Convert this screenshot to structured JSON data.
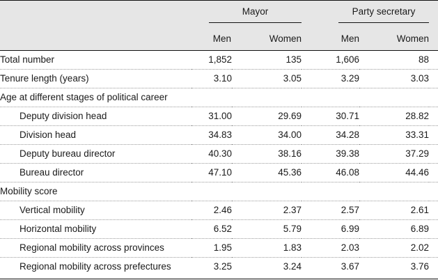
{
  "header": {
    "groups": [
      "Mayor",
      "Party secretary"
    ],
    "subheaders": [
      "Men",
      "Women",
      "Men",
      "Women"
    ]
  },
  "rows": [
    {
      "label": "Total number",
      "indent": false,
      "values": [
        "1,852",
        "135",
        "1,606",
        "88"
      ]
    },
    {
      "label": "Tenure length (years)",
      "indent": false,
      "values": [
        "3.10",
        "3.05",
        "3.29",
        "3.03"
      ]
    },
    {
      "label": "Age at different stages of political career",
      "indent": false,
      "values": [
        "",
        "",
        "",
        ""
      ]
    },
    {
      "label": "Deputy division head",
      "indent": true,
      "values": [
        "31.00",
        "29.69",
        "30.71",
        "28.82"
      ]
    },
    {
      "label": "Division head",
      "indent": true,
      "values": [
        "34.83",
        "34.00",
        "34.28",
        "33.31"
      ]
    },
    {
      "label": "Deputy bureau director",
      "indent": true,
      "values": [
        "40.30",
        "38.16",
        "39.38",
        "37.29"
      ]
    },
    {
      "label": "Bureau director",
      "indent": true,
      "values": [
        "47.10",
        "45.36",
        "46.08",
        "44.46"
      ]
    },
    {
      "label": "Mobility score",
      "indent": false,
      "values": [
        "",
        "",
        "",
        ""
      ]
    },
    {
      "label": "Vertical mobility",
      "indent": true,
      "values": [
        "2.46",
        "2.37",
        "2.57",
        "2.61"
      ]
    },
    {
      "label": "Horizontal mobility",
      "indent": true,
      "values": [
        "6.52",
        "5.79",
        "6.99",
        "6.89"
      ]
    },
    {
      "label": "Regional mobility across provinces",
      "indent": true,
      "values": [
        "1.95",
        "1.83",
        "2.03",
        "2.02"
      ]
    },
    {
      "label": "Regional mobility across prefectures",
      "indent": true,
      "values": [
        "3.25",
        "3.24",
        "3.67",
        "3.76"
      ]
    }
  ]
}
